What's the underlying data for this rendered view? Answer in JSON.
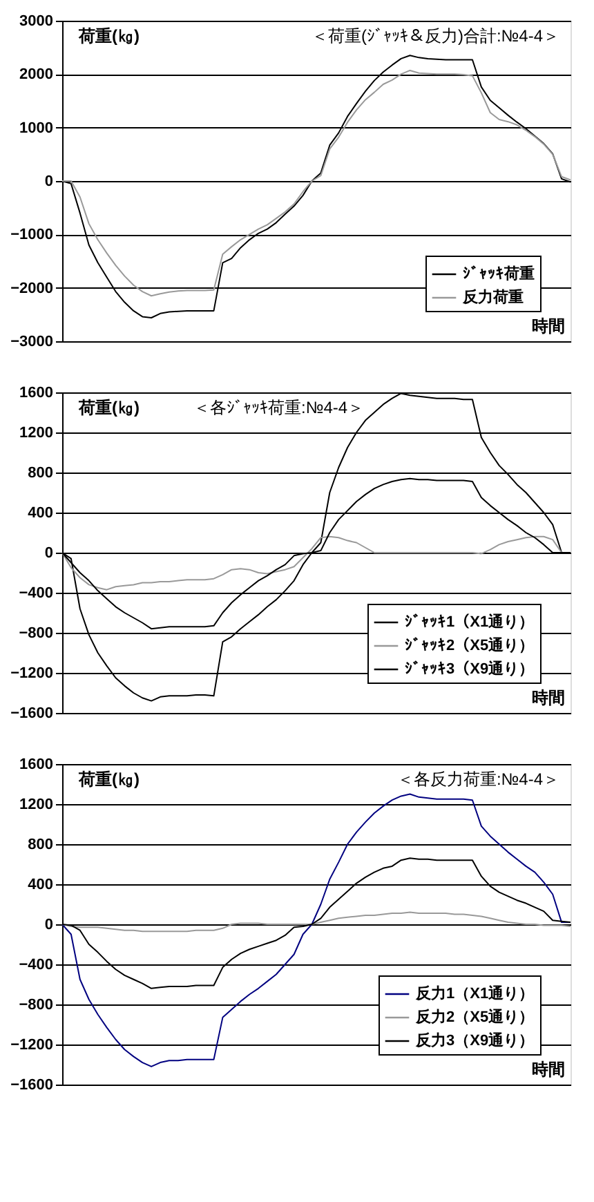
{
  "chart_data": [
    {
      "type": "line",
      "title": "＜荷重(ｼﾞｬｯｷ＆反力)合計:№4-4＞",
      "ylabel": "荷重(㎏)",
      "xlabel": "時間",
      "categories": [
        null,
        null,
        null,
        null,
        null,
        null,
        null,
        null,
        null,
        null,
        null,
        null,
        null,
        null,
        null,
        null,
        null,
        null,
        null,
        null,
        null,
        null,
        null,
        null,
        null,
        null,
        null,
        null,
        null,
        null,
        null,
        null,
        null,
        null,
        null,
        null,
        null,
        null,
        null,
        null,
        null,
        null,
        null,
        null,
        null,
        null,
        null,
        null,
        null,
        null,
        null,
        null,
        null,
        null,
        null,
        null,
        null,
        null
      ],
      "ylim": [
        -3000,
        3000
      ],
      "yticks": [
        -3000,
        -2000,
        -1000,
        0,
        1000,
        2000,
        3000
      ],
      "grid": "y",
      "legend": "bottom right",
      "series": [
        {
          "name": "ｼﾞｬｯｷ荷重",
          "color": "#000000",
          "values": [
            0,
            -50,
            -600,
            -1200,
            -1530,
            -1800,
            -2070,
            -2270,
            -2430,
            -2540,
            -2560,
            -2480,
            -2450,
            -2440,
            -2430,
            -2430,
            -2430,
            -2430,
            -1530,
            -1450,
            -1250,
            -1100,
            -980,
            -900,
            -780,
            -620,
            -470,
            -270,
            0,
            150,
            670,
            900,
            1210,
            1450,
            1680,
            1880,
            2040,
            2170,
            2290,
            2350,
            2310,
            2290,
            2280,
            2270,
            2270,
            2270,
            2270,
            1760,
            1510,
            1370,
            1230,
            1100,
            980,
            840,
            700,
            510,
            40,
            -20
          ]
        },
        {
          "name": "反力荷重",
          "color": "#999999",
          "values": [
            0,
            0,
            -300,
            -800,
            -1100,
            -1350,
            -1580,
            -1780,
            -1950,
            -2070,
            -2150,
            -2110,
            -2080,
            -2060,
            -2050,
            -2050,
            -2050,
            -2040,
            -1370,
            -1230,
            -1100,
            -1000,
            -900,
            -820,
            -700,
            -580,
            -430,
            -200,
            0,
            100,
            600,
            820,
            1100,
            1330,
            1520,
            1660,
            1810,
            1890,
            2000,
            2070,
            2020,
            2010,
            2000,
            2000,
            2000,
            1990,
            1970,
            1650,
            1280,
            1150,
            1110,
            1050,
            950,
            830,
            690,
            500,
            80,
            20
          ]
        }
      ]
    },
    {
      "type": "line",
      "title": "＜各ｼﾞｬｯｷ荷重:№4-4＞",
      "ylabel": "荷重(㎏)",
      "xlabel": "時間",
      "categories": [
        null,
        null,
        null,
        null,
        null,
        null,
        null,
        null,
        null,
        null,
        null,
        null,
        null,
        null,
        null,
        null,
        null,
        null,
        null,
        null,
        null,
        null,
        null,
        null,
        null,
        null,
        null,
        null,
        null,
        null,
        null,
        null,
        null,
        null,
        null,
        null,
        null,
        null,
        null,
        null,
        null,
        null,
        null,
        null,
        null,
        null,
        null,
        null,
        null,
        null,
        null,
        null,
        null,
        null,
        null,
        null,
        null,
        null
      ],
      "ylim": [
        -1600,
        1600
      ],
      "yticks": [
        -1600,
        -1200,
        -800,
        -400,
        0,
        400,
        800,
        1200,
        1600
      ],
      "grid": "y",
      "legend": "bottom right",
      "series": [
        {
          "name": "ｼﾞｬｯｷ1（X1通り）",
          "color": "#000000",
          "values": [
            0,
            -60,
            -560,
            -820,
            -1000,
            -1130,
            -1250,
            -1330,
            -1400,
            -1450,
            -1480,
            -1440,
            -1430,
            -1430,
            -1430,
            -1420,
            -1420,
            -1430,
            -890,
            -840,
            -760,
            -690,
            -620,
            -540,
            -470,
            -380,
            -280,
            -120,
            0,
            100,
            600,
            850,
            1050,
            1200,
            1320,
            1400,
            1480,
            1540,
            1590,
            1570,
            1560,
            1550,
            1540,
            1540,
            1540,
            1530,
            1530,
            1150,
            1000,
            870,
            780,
            680,
            600,
            500,
            400,
            280,
            0,
            0
          ]
        },
        {
          "name": "ｼﾞｬｯｷ2（X5通り）",
          "color": "#999999",
          "values": [
            0,
            -150,
            -250,
            -320,
            -350,
            -370,
            -340,
            -330,
            -320,
            -300,
            -300,
            -290,
            -290,
            -280,
            -270,
            -270,
            -270,
            -260,
            -220,
            -170,
            -160,
            -170,
            -200,
            -210,
            -190,
            -170,
            -140,
            -50,
            40,
            150,
            160,
            150,
            120,
            100,
            50,
            0,
            0,
            0,
            0,
            0,
            0,
            0,
            0,
            0,
            0,
            0,
            0,
            -10,
            30,
            80,
            110,
            130,
            150,
            160,
            160,
            130,
            0,
            0
          ]
        },
        {
          "name": "ｼﾞｬｯｷ3（X9通り）",
          "color": "#000000",
          "values": [
            0,
            -100,
            -200,
            -280,
            -380,
            -460,
            -540,
            -600,
            -650,
            -700,
            -760,
            -750,
            -740,
            -740,
            -740,
            -740,
            -740,
            -730,
            -600,
            -500,
            -420,
            -350,
            -280,
            -230,
            -170,
            -120,
            -30,
            -10,
            0,
            20,
            200,
            330,
            420,
            510,
            580,
            640,
            680,
            710,
            730,
            740,
            730,
            730,
            720,
            720,
            720,
            720,
            710,
            550,
            470,
            400,
            330,
            270,
            200,
            150,
            80,
            0,
            0,
            0
          ]
        }
      ]
    },
    {
      "type": "line",
      "title": "＜各反力荷重:№4-4＞",
      "ylabel": "荷重(㎏)",
      "xlabel": "時間",
      "categories": [
        null,
        null,
        null,
        null,
        null,
        null,
        null,
        null,
        null,
        null,
        null,
        null,
        null,
        null,
        null,
        null,
        null,
        null,
        null,
        null,
        null,
        null,
        null,
        null,
        null,
        null,
        null,
        null,
        null,
        null,
        null,
        null,
        null,
        null,
        null,
        null,
        null,
        null,
        null,
        null,
        null,
        null,
        null,
        null,
        null,
        null,
        null,
        null,
        null,
        null,
        null,
        null,
        null,
        null,
        null,
        null,
        null,
        null
      ],
      "ylim": [
        -1600,
        1600
      ],
      "yticks": [
        -1600,
        -1200,
        -800,
        -400,
        0,
        400,
        800,
        1200,
        1600
      ],
      "grid": "y",
      "legend": "bottom right",
      "series": [
        {
          "name": "反力1（X1通り）",
          "color": "#000080",
          "values": [
            0,
            -100,
            -550,
            -750,
            -900,
            -1030,
            -1150,
            -1250,
            -1320,
            -1380,
            -1420,
            -1380,
            -1360,
            -1360,
            -1350,
            -1350,
            -1350,
            -1350,
            -930,
            -850,
            -770,
            -700,
            -640,
            -570,
            -500,
            -400,
            -300,
            -100,
            0,
            200,
            450,
            620,
            800,
            920,
            1020,
            1110,
            1180,
            1240,
            1280,
            1300,
            1270,
            1260,
            1250,
            1250,
            1250,
            1250,
            1240,
            980,
            880,
            800,
            720,
            650,
            580,
            520,
            420,
            300,
            20,
            20
          ]
        },
        {
          "name": "反力2（X5通り）",
          "color": "#999999",
          "values": [
            0,
            -20,
            -30,
            -30,
            -30,
            -40,
            -50,
            -60,
            -60,
            -70,
            -70,
            -70,
            -70,
            -70,
            -70,
            -60,
            -60,
            -60,
            -40,
            0,
            10,
            10,
            10,
            0,
            0,
            0,
            0,
            0,
            0,
            20,
            40,
            60,
            70,
            80,
            90,
            90,
            100,
            110,
            110,
            120,
            110,
            110,
            110,
            110,
            100,
            100,
            90,
            80,
            60,
            40,
            20,
            10,
            0,
            0,
            -10,
            -10,
            -10,
            -20
          ]
        },
        {
          "name": "反力3（X9通り）",
          "color": "#000000",
          "values": [
            0,
            -10,
            -60,
            -200,
            -280,
            -370,
            -450,
            -510,
            -550,
            -590,
            -640,
            -630,
            -620,
            -620,
            -620,
            -610,
            -610,
            -610,
            -430,
            -350,
            -290,
            -250,
            -220,
            -190,
            -160,
            -110,
            -30,
            -20,
            0,
            60,
            170,
            250,
            330,
            410,
            470,
            520,
            560,
            580,
            640,
            660,
            650,
            650,
            640,
            640,
            640,
            640,
            640,
            480,
            380,
            320,
            280,
            240,
            210,
            170,
            130,
            40,
            30,
            20
          ]
        }
      ]
    }
  ]
}
